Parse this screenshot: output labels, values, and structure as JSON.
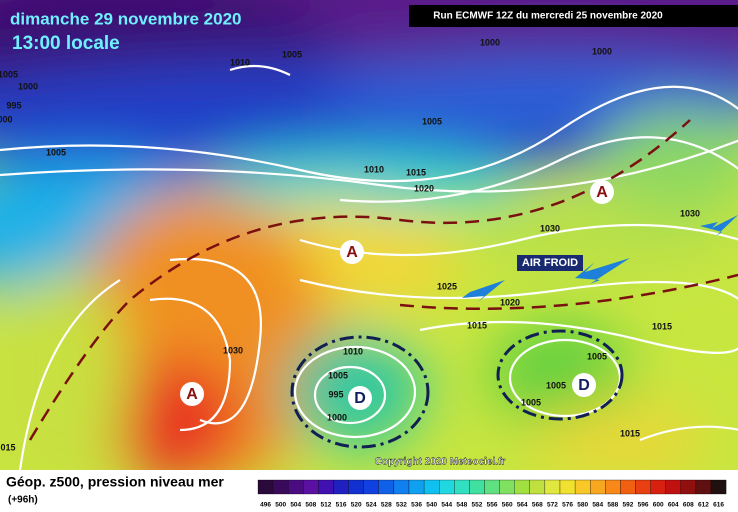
{
  "header": {
    "date": "dimanche 29 novembre 2020",
    "time": "13:00 locale",
    "run": "Run ECMWF 12Z du mercredi 25 novembre 2020"
  },
  "footer": {
    "title": "Géop. z500, pression niveau mer",
    "lead": "(+96h)",
    "copyright": "Copyright 2020 Meteociel.fr"
  },
  "annotation": "AIR FROID",
  "centers": [
    "A",
    "A",
    "A",
    "D",
    "D"
  ],
  "isobar_labels": [
    "1005",
    "1000",
    "995",
    "000",
    "1010",
    "1005",
    "1000",
    "1000",
    "1005",
    "1005",
    "1010",
    "1015",
    "1020",
    "1030",
    "1030",
    "1025",
    "1020",
    "1015",
    "1030",
    "1010",
    "1005",
    "995",
    "1000",
    "1005",
    "1005",
    "1005",
    "1015",
    "1015",
    "015"
  ],
  "scale_labels": [
    "496",
    "500",
    "504",
    "508",
    "512",
    "516",
    "520",
    "524",
    "528",
    "532",
    "536",
    "540",
    "544",
    "548",
    "552",
    "556",
    "560",
    "564",
    "568",
    "572",
    "576",
    "580",
    "584",
    "588",
    "592",
    "596",
    "600",
    "604",
    "608",
    "612",
    "616"
  ]
}
